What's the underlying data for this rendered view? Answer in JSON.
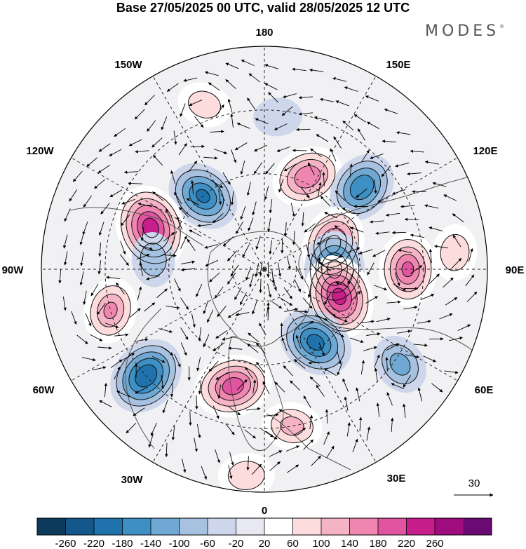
{
  "title": "Base 27/05/2025 00 UTC, valid 28/05/2025 12 UTC",
  "brand": "MODES",
  "brand_mark": "®",
  "longitude_labels": {
    "lon_180": "180",
    "lon_150e": "150E",
    "lon_120e": "120E",
    "lon_90e": "90E",
    "lon_60e": "60E",
    "lon_30e": "30E",
    "lon_0": "0",
    "lon_30w": "30W",
    "lon_60w": "60W",
    "lon_90w": "90W",
    "lon_120w": "120W",
    "lon_150w": "150W"
  },
  "reference_vector": {
    "label": "30"
  },
  "colorbar": {
    "ticks": [
      "-260",
      "-220",
      "-180",
      "-140",
      "-100",
      "-60",
      "-20",
      "20",
      "60",
      "100",
      "140",
      "180",
      "220",
      "260"
    ],
    "colors": [
      "#0d3b5c",
      "#14578a",
      "#1f72ab",
      "#3d8fc4",
      "#6fa9d3",
      "#a6c2e0",
      "#cdd6ea",
      "#e8e8f2",
      "#ffffff",
      "#fcdcdc",
      "#f5b3c6",
      "#ef86b0",
      "#e054a0",
      "#c81e8c",
      "#9e0c7e",
      "#6b0a72"
    ]
  },
  "anomaly_centers": [
    {
      "id": "c1",
      "lon": 155,
      "lat": 58,
      "value": 170
    },
    {
      "id": "c2",
      "lon": -140,
      "lat": 60,
      "value": -180
    },
    {
      "id": "c3",
      "lon": -110,
      "lat": 52,
      "value": 240
    },
    {
      "id": "c4",
      "lon": 130,
      "lat": 50,
      "value": -170
    },
    {
      "id": "c5",
      "lon": 110,
      "lat": 67,
      "value": 190
    },
    {
      "id": "c6",
      "lon": 90,
      "lat": 68,
      "value": -190
    },
    {
      "id": "c7",
      "lon": 90,
      "lat": 45,
      "value": 180
    },
    {
      "id": "c8",
      "lon": 70,
      "lat": 65,
      "value": 230
    },
    {
      "id": "c9",
      "lon": 35,
      "lat": 62,
      "value": -190
    },
    {
      "id": "c10",
      "lon": -15,
      "lat": 52,
      "value": 200
    },
    {
      "id": "c11",
      "lon": -48,
      "lat": 40,
      "value": -210
    },
    {
      "id": "c12",
      "lon": -75,
      "lat": 40,
      "value": 140
    },
    {
      "id": "c13",
      "lon": -95,
      "lat": 55,
      "value": -80
    },
    {
      "id": "c14",
      "lon": 55,
      "lat": 38,
      "value": -110
    },
    {
      "id": "c15",
      "lon": 95,
      "lat": 30,
      "value": 90
    },
    {
      "id": "c16",
      "lon": -160,
      "lat": 35,
      "value": 80
    },
    {
      "id": "c17",
      "lon": 175,
      "lat": 42,
      "value": -50
    },
    {
      "id": "c18",
      "lon": 10,
      "lat": 40,
      "value": 110
    },
    {
      "id": "c19",
      "lon": -5,
      "lat": 25,
      "value": 90
    }
  ]
}
